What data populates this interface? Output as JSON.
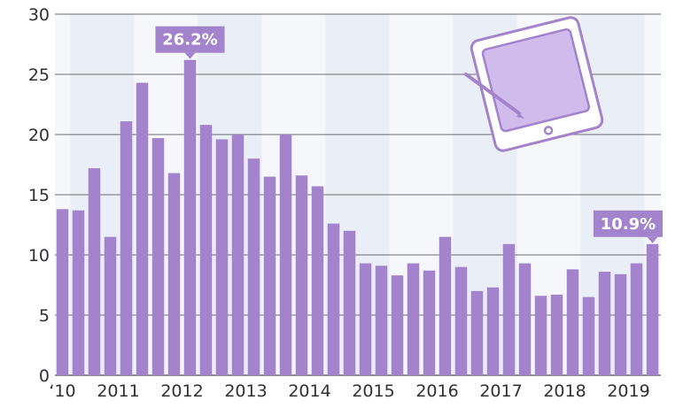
{
  "chart_data": {
    "type": "bar",
    "title": "",
    "xlabel": "",
    "ylabel": "",
    "ylim": [
      0,
      30
    ],
    "y_ticks": [
      0,
      5,
      10,
      15,
      20,
      25,
      30
    ],
    "grid": true,
    "alternating_year_bands": true,
    "x_tick_labels": [
      {
        "label": "‘10",
        "index": 0
      },
      {
        "label": "2011",
        "index": 3.5
      },
      {
        "label": "2012",
        "index": 7.5
      },
      {
        "label": "2013",
        "index": 11.5
      },
      {
        "label": "2014",
        "index": 15.5
      },
      {
        "label": "2015",
        "index": 19.5
      },
      {
        "label": "2016",
        "index": 23.5
      },
      {
        "label": "2017",
        "index": 27.5
      },
      {
        "label": "2018",
        "index": 31.5
      },
      {
        "label": "2019",
        "index": 35.5
      }
    ],
    "values": [
      13.8,
      13.7,
      17.2,
      11.5,
      21.1,
      24.3,
      19.7,
      16.8,
      26.2,
      20.8,
      19.6,
      20.0,
      18.0,
      16.5,
      20.0,
      16.6,
      15.7,
      12.6,
      12.0,
      9.3,
      9.1,
      8.3,
      9.3,
      8.7,
      11.5,
      9.0,
      7.0,
      7.3,
      10.9,
      9.3,
      6.6,
      6.7,
      8.8,
      6.5,
      8.6,
      8.4,
      9.3,
      10.9
    ],
    "callouts": [
      {
        "index": 8,
        "text": "26.2%"
      },
      {
        "index": 37,
        "text": "10.9%"
      }
    ],
    "colors": {
      "bar": "#a383cc",
      "band": "#eaeef6",
      "background": "#f5f7fb",
      "grid": "#6d6f75",
      "callout": "#a383cc",
      "text": "#2f3033"
    },
    "illustration": "tablet-with-stylus-icon"
  }
}
